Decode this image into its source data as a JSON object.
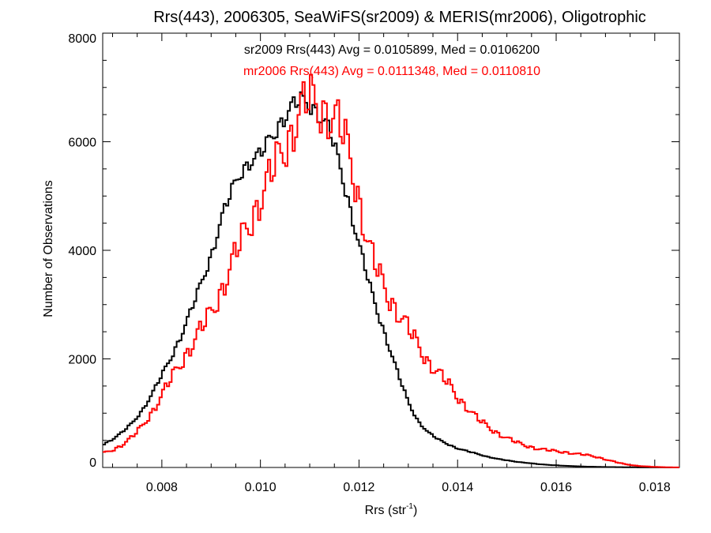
{
  "chart_data": {
    "type": "line",
    "style": "step-histogram",
    "title": "Rrs(443), 2006305, SeaWiFS(sr2009) & MERIS(mr2006), Oligotrophic",
    "xlabel_main": "Rrs (str",
    "xlabel_sup": "-1",
    "xlabel_end": ")",
    "ylabel": "Number of Observations",
    "xlim": [
      0.0068,
      0.0185
    ],
    "ylim": [
      0,
      8000
    ],
    "xticks": [
      {
        "value": 0.008,
        "label": "0.008"
      },
      {
        "value": 0.01,
        "label": "0.010"
      },
      {
        "value": 0.012,
        "label": "0.012"
      },
      {
        "value": 0.014,
        "label": "0.014"
      },
      {
        "value": 0.016,
        "label": "0.016"
      },
      {
        "value": 0.018,
        "label": "0.018"
      }
    ],
    "yticks": [
      {
        "value": 0,
        "label": "0"
      },
      {
        "value": 2000,
        "label": "2000"
      },
      {
        "value": 4000,
        "label": "4000"
      },
      {
        "value": 6000,
        "label": "6000"
      },
      {
        "value": 8000,
        "label": "8000"
      }
    ],
    "annotations": [
      {
        "text": "sr2009 Rrs(443) Avg = 0.0105899, Med = 0.0106200",
        "color": "#000000"
      },
      {
        "text": "mr2006 Rrs(443) Avg = 0.0111348, Med = 0.0110810",
        "color": "#ff0000"
      }
    ],
    "grid": false,
    "series": [
      {
        "color": "#000000",
        "x": [
          0.0068,
          0.007,
          0.0072,
          0.0074,
          0.0076,
          0.0078,
          0.008,
          0.0082,
          0.0084,
          0.0086,
          0.0088,
          0.009,
          0.0092,
          0.0094,
          0.0096,
          0.0098,
          0.01,
          0.0102,
          0.0104,
          0.0106,
          0.0108,
          0.011,
          0.0112,
          0.0114,
          0.0116,
          0.0118,
          0.012,
          0.0122,
          0.0124,
          0.0126,
          0.0128,
          0.013,
          0.0132,
          0.0134,
          0.0136,
          0.0138,
          0.014,
          0.0142,
          0.0144,
          0.0146,
          0.0148,
          0.015,
          0.0152,
          0.0154,
          0.0156,
          0.0158,
          0.016,
          0.0162,
          0.0164,
          0.0166,
          0.0168,
          0.017,
          0.0172,
          0.0174,
          0.0176,
          0.0178,
          0.018,
          0.0182,
          0.0184
        ],
        "y": [
          420,
          520,
          650,
          820,
          1050,
          1350,
          1700,
          2050,
          2450,
          2900,
          3400,
          3900,
          4550,
          5050,
          5450,
          5650,
          5750,
          6050,
          6350,
          6600,
          6750,
          6700,
          6500,
          6200,
          5600,
          4850,
          4100,
          3400,
          2800,
          2250,
          1700,
          1200,
          850,
          650,
          520,
          430,
          350,
          300,
          250,
          200,
          160,
          130,
          105,
          85,
          65,
          50,
          40,
          30,
          22,
          16,
          12,
          8,
          6,
          4,
          3,
          2,
          1,
          1,
          0
        ]
      },
      {
        "color": "#ff0000",
        "x": [
          0.0068,
          0.007,
          0.0072,
          0.0074,
          0.0076,
          0.0078,
          0.008,
          0.0082,
          0.0084,
          0.0086,
          0.0088,
          0.009,
          0.0092,
          0.0094,
          0.0096,
          0.0098,
          0.01,
          0.0102,
          0.0104,
          0.0106,
          0.0108,
          0.011,
          0.0112,
          0.0114,
          0.0116,
          0.0118,
          0.012,
          0.0122,
          0.0124,
          0.0126,
          0.0128,
          0.013,
          0.0132,
          0.0134,
          0.0136,
          0.0138,
          0.014,
          0.0142,
          0.0144,
          0.0146,
          0.0148,
          0.015,
          0.0152,
          0.0154,
          0.0156,
          0.0158,
          0.016,
          0.0162,
          0.0164,
          0.0166,
          0.0168,
          0.017,
          0.0172,
          0.0174,
          0.0176,
          0.0178,
          0.018,
          0.0182,
          0.0184
        ],
        "y": [
          260,
          320,
          420,
          560,
          760,
          1020,
          1330,
          1650,
          1950,
          2250,
          2550,
          2850,
          3250,
          3700,
          4150,
          4550,
          4950,
          5350,
          5750,
          6100,
          6550,
          6780,
          6650,
          6500,
          6300,
          5800,
          4950,
          4050,
          3550,
          3150,
          2850,
          2550,
          2250,
          1950,
          1750,
          1550,
          1300,
          1100,
          900,
          760,
          640,
          540,
          460,
          400,
          350,
          320,
          300,
          280,
          250,
          230,
          200,
          150,
          100,
          60,
          35,
          20,
          10,
          5,
          2
        ]
      }
    ]
  }
}
